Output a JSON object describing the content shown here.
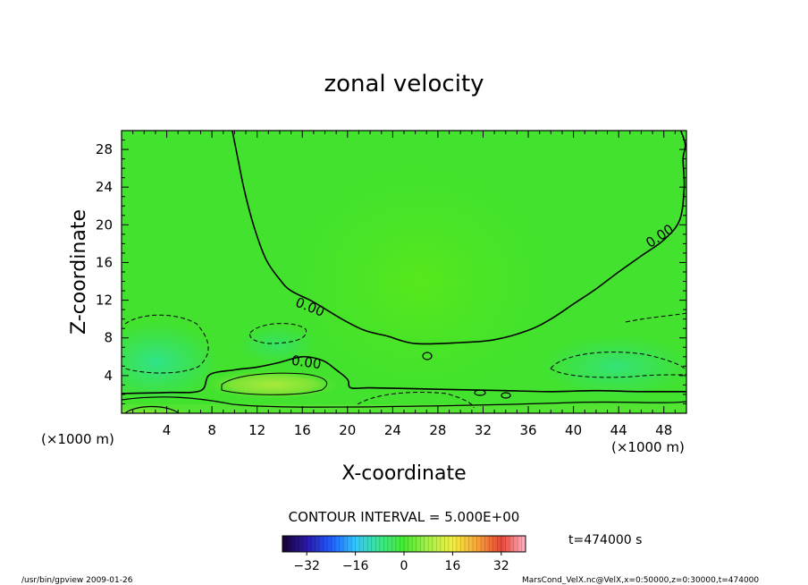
{
  "chart_data": {
    "type": "heatmap",
    "title": "zonal velocity",
    "xlabel": "X-coordinate",
    "ylabel": "Z-coordinate",
    "x_unit": "(×1000 m)",
    "y_unit": "(×1000 m)",
    "xlim": [
      0,
      50
    ],
    "ylim": [
      0,
      30
    ],
    "x_ticks": [
      4,
      8,
      12,
      16,
      20,
      24,
      28,
      32,
      36,
      40,
      44,
      48
    ],
    "y_ticks": [
      4,
      8,
      12,
      16,
      20,
      24,
      28
    ],
    "contour_interval_text": "CONTOUR INTERVAL = 5.000E+00",
    "contour_labels": [
      "0.00",
      "0.00",
      "0.00"
    ],
    "zero_contour_main": [
      [
        9.8,
        30
      ],
      [
        10.3,
        27
      ],
      [
        10.9,
        23.5
      ],
      [
        11.8,
        19.5
      ],
      [
        12.8,
        16.3
      ],
      [
        14.0,
        14.2
      ],
      [
        15.0,
        13.0
      ],
      [
        17.0,
        11.8
      ],
      [
        19.5,
        10.0
      ],
      [
        21.5,
        8.8
      ],
      [
        23.5,
        8.2
      ],
      [
        26.0,
        7.4
      ],
      [
        30.0,
        7.5
      ],
      [
        33.0,
        7.8
      ],
      [
        36.0,
        8.8
      ],
      [
        38.0,
        10.0
      ],
      [
        40.0,
        11.6
      ],
      [
        42.0,
        13.2
      ],
      [
        44.0,
        15.0
      ],
      [
        46.0,
        16.7
      ],
      [
        48.0,
        18.4
      ],
      [
        49.4,
        20.5
      ],
      [
        49.8,
        24.0
      ],
      [
        49.7,
        27.0
      ],
      [
        49.9,
        28.5
      ],
      [
        49.5,
        30
      ]
    ],
    "zero_contour_low": [
      [
        0,
        2.1
      ],
      [
        4,
        2.2
      ],
      [
        7,
        2.4
      ],
      [
        7.8,
        4.1
      ],
      [
        10,
        4.6
      ],
      [
        12,
        4.9
      ],
      [
        14,
        5.4
      ],
      [
        16,
        6.0
      ],
      [
        17.8,
        5.6
      ],
      [
        19,
        4.6
      ],
      [
        20,
        3.6
      ],
      [
        20.3,
        2.7
      ],
      [
        22,
        2.7
      ],
      [
        26,
        2.6
      ],
      [
        30,
        2.5
      ],
      [
        34,
        2.4
      ],
      [
        38,
        2.3
      ],
      [
        42,
        2.4
      ],
      [
        46,
        2.3
      ],
      [
        50,
        2.3
      ]
    ],
    "colorbar": {
      "ticks": [
        -32,
        -16,
        0,
        16,
        32
      ],
      "range": [
        -40,
        40
      ],
      "colors": [
        "#1a0033",
        "#2a1aa8",
        "#1f5cff",
        "#33c7ff",
        "#38e88c",
        "#46ea2e",
        "#a6f04a",
        "#f2ef3d",
        "#f7a538",
        "#ea4436",
        "#ffb3c6"
      ]
    },
    "time_label": "t=474000 s"
  },
  "footer": {
    "left": "/usr/bin/gpview  2009-01-26",
    "right": "MarsCond_VelX.nc@VelX,x=0:50000,z=0:30000,t=474000"
  }
}
